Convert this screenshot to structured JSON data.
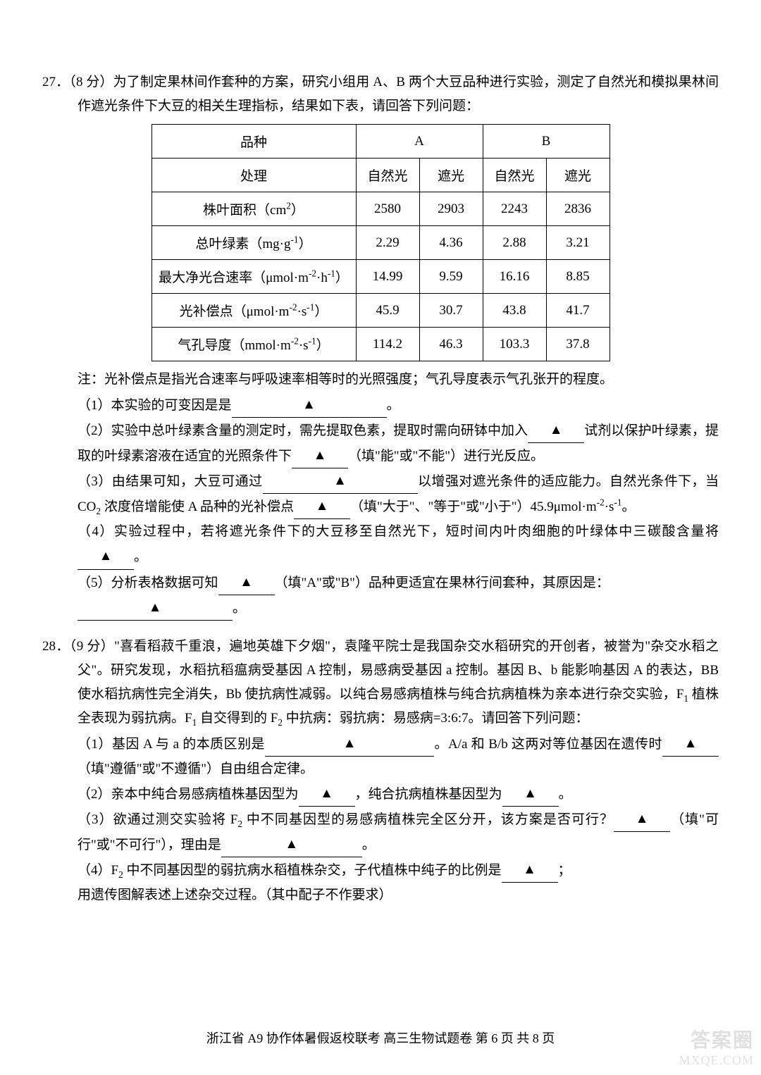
{
  "q27": {
    "number": "27．",
    "stem": "（8 分）为了制定果林间作套种的方案，研究小组用 A、B 两个大豆品种进行实验，测定了自然光和模拟果林间作遮光条件下大豆的相关生理指标，结果如下表，请回答下列问题：",
    "table": {
      "header_row1": {
        "c1": "品种",
        "c2": "A",
        "c3": "B"
      },
      "header_row2": {
        "c1": "处理",
        "c2": "自然光",
        "c3": "遮光",
        "c4": "自然光",
        "c5": "遮光"
      },
      "rows": [
        {
          "label_html": "株叶面积（cm<sup>2</sup>）",
          "a1": "2580",
          "a2": "2903",
          "b1": "2243",
          "b2": "2836"
        },
        {
          "label_html": "总叶绿素（mg·g<sup>-1</sup>）",
          "a1": "2.29",
          "a2": "4.36",
          "b1": "2.88",
          "b2": "3.21"
        },
        {
          "label_html": "最大净光合速率（μmol·m<sup>-2</sup>·h<sup>-1</sup>）",
          "a1": "14.99",
          "a2": "9.59",
          "b1": "16.16",
          "b2": "8.85"
        },
        {
          "label_html": "光补偿点（μmol·m<sup>-2</sup>·s<sup>-1</sup>）",
          "a1": "45.9",
          "a2": "30.7",
          "b1": "43.8",
          "b2": "41.7"
        },
        {
          "label_html": "气孔导度（mmol·m<sup>-2</sup>·s<sup>-1</sup>）",
          "a1": "114.2",
          "a2": "46.3",
          "b1": "103.3",
          "b2": "37.8"
        }
      ],
      "col_widths": {
        "label": 290,
        "data": 90
      },
      "border_color": "#000000"
    },
    "note": "注：光补偿点是指光合速率与呼吸速率相等时的光照强度；气孔导度表示气孔张开的程度。",
    "subs": {
      "s1": "（1）本实验的可变因是是",
      "s1_end": "。",
      "s2a": "（2）实验中总叶绿素含量的测定时，需先提取色素，提取时需向研钵中加入",
      "s2b": "试剂以保护叶绿素，提取的叶绿素溶液在适宜的光照条件下",
      "s2c": "（填\"能\"或\"不能\"）进行光反应。",
      "s3a": "（3）由结果可知，大豆可通过",
      "s3b": "以增强对遮光条件的适应能力。自然光条件下，当 CO<sub>2</sub> 浓度倍增能使 A 品种的光补偿点",
      "s3c": "（填\"大于\"、\"等于\"或\"小于\"）45.9μmol·m<sup>-2</sup>·s<sup>-1</sup>。",
      "s4a": "（4）实验过程中，若将遮光条件下的大豆移至自然光下，短时间内叶肉细胞的叶绿体中三碳酸含量将",
      "s4b": "。",
      "s5a": "（5）分析表格数据可知",
      "s5b": "（填\"A\"或\"B\"）品种更适宜在果林行间套种，其原因是：",
      "s5c": "。"
    }
  },
  "q28": {
    "number": "28．",
    "stem": "（9 分）\"喜看稻菽千重浪，遍地英雄下夕烟\"，袁隆平院士是我国杂交水稻研究的开创者，被誉为\"杂交水稻之父\"。研究发现，水稻抗稻瘟病受基因 A 控制，易感病受基因 a 控制。基因 B、b 能影响基因 A 的表达，BB 使水稻抗病性完全消失，Bb 使抗病性减弱。以纯合易感病植株与纯合抗病植株为亲本进行杂交实验，F<sub>1</sub> 植株全表现为弱抗病。F<sub>1</sub> 自交得到的 F<sub>2</sub> 中抗病：弱抗病：易感病=3:6:7。请回答下列问题：",
    "subs": {
      "s1a": "（1）基因 A 与 a 的本质区别是",
      "s1b": "。A/a 和 B/b 这两对等位基因在遗传时",
      "s1c": "（填\"遵循\"或\"不遵循\"）自由组合定律。",
      "s2a": "（2）亲本中纯合易感病植株基因型为",
      "s2b": "，纯合抗病植株基因型为",
      "s2c": "。",
      "s3a": "（3）欲通过测交实验将 F<sub>2</sub> 中不同基因型的易感病植株完全区分开，该方案是否可行？",
      "s3b": "（填\"可行\"或\"不可行\"），理由是",
      "s3c": "。",
      "s4a": "（4）F<sub>2</sub> 中不同基因型的弱抗病水稻植株杂交，子代植株中纯子的比例是",
      "s4b": "；",
      "s4c": "用遗传图解表述上述杂交过程。（其中配子不作要求）"
    }
  },
  "footer": "浙江省 A9 协作体暑假返校联考  高三生物试题卷   第  6  页  共  8  页",
  "watermark": {
    "top": "答案圈",
    "bottom": "MXQE.COM"
  },
  "blank_triangle": "▲"
}
